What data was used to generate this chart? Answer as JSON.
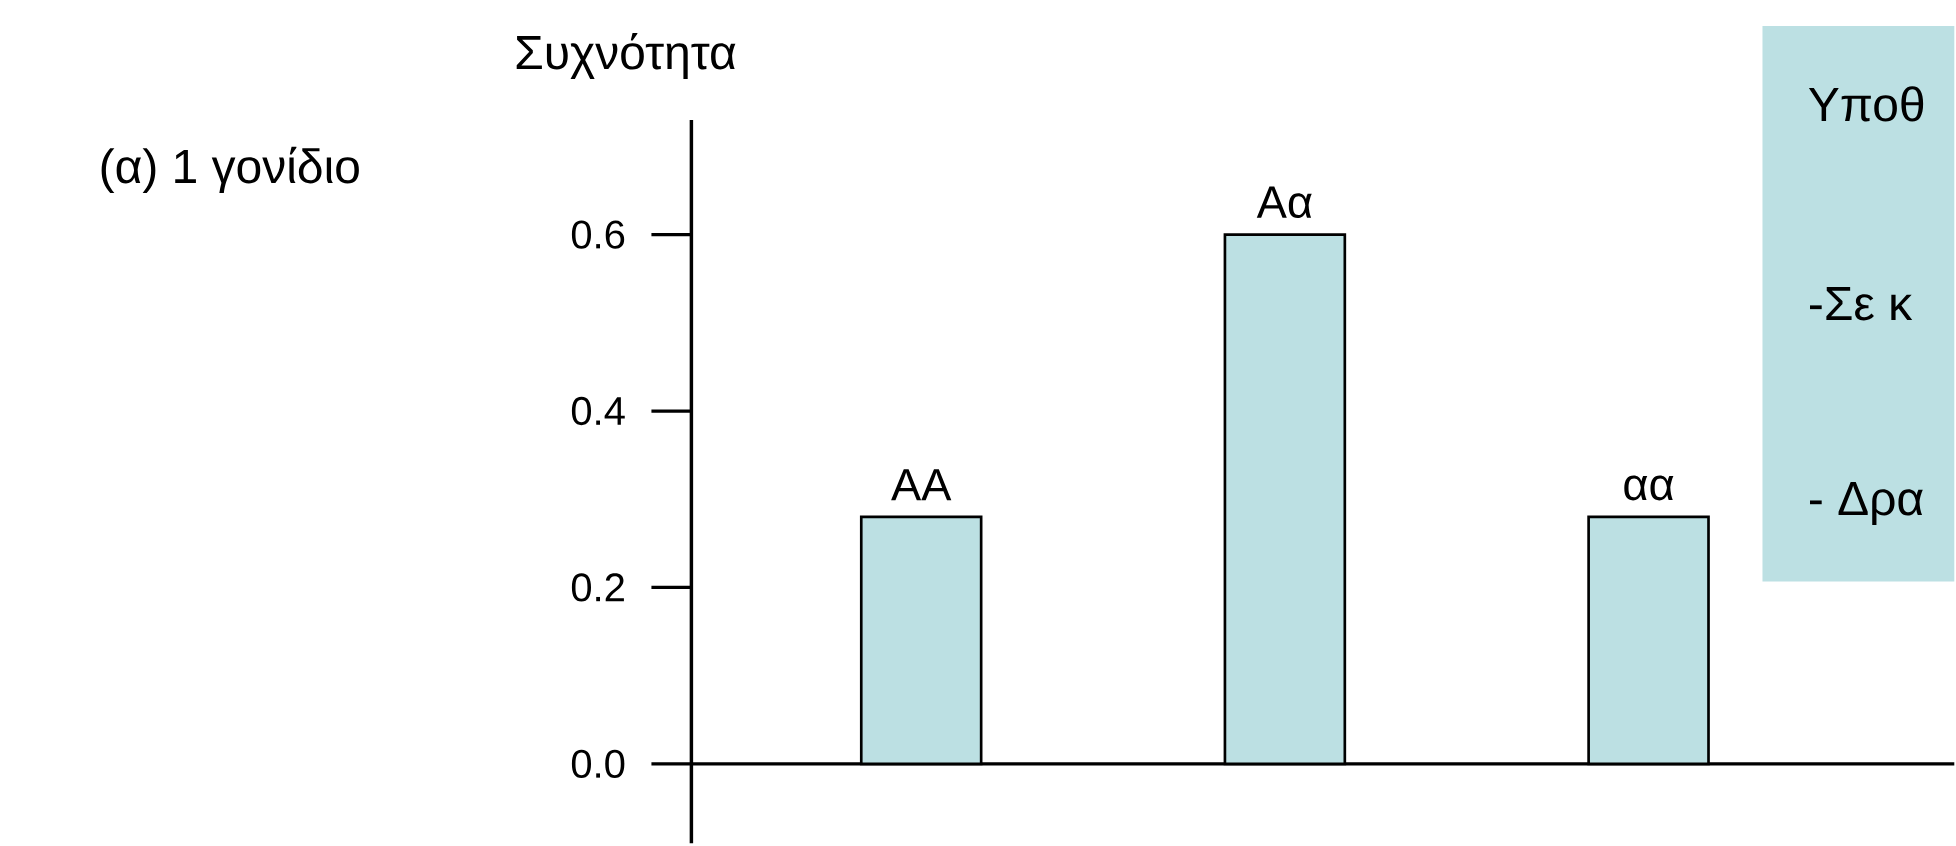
{
  "chart_data": {
    "type": "bar",
    "title": "(α) 1 γονίδιο",
    "ylabel": "Συχνότητα",
    "categories": [
      "AA",
      "Aα",
      "αα"
    ],
    "values": [
      0.28,
      0.6,
      0.28
    ],
    "color": "#bce0e3",
    "ylim": [
      -0.09,
      0.73
    ],
    "yticks": [
      {
        "value": 0,
        "label": "0.0"
      },
      0.2,
      0.4,
      0.6
    ],
    "tick_labels": "y",
    "annotations": [
      "Υποθ",
      "-Σε κ",
      "- Δρα"
    ]
  }
}
